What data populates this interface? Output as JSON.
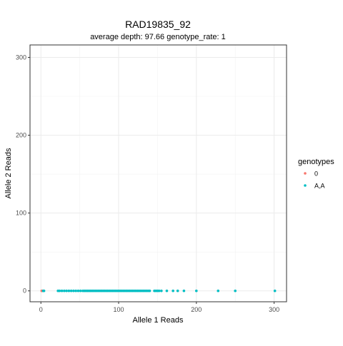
{
  "chart_data": {
    "type": "scatter",
    "title": "RAD19835_92",
    "subtitle": "average depth:  97.66  genotype_rate:  1",
    "xlabel": "Allele 1 Reads",
    "ylabel": "Allele 2 Reads",
    "xlim": [
      -14,
      316
    ],
    "ylim": [
      -14,
      316
    ],
    "x_ticks": [
      0,
      100,
      200,
      300
    ],
    "y_ticks": [
      0,
      100,
      200,
      300
    ],
    "grid": true,
    "legend_title": "genotypes",
    "legend_position": "right",
    "series": [
      {
        "name": "0",
        "color": "#F8766D",
        "points": [
          [
            1,
            0
          ],
          [
            2,
            0
          ]
        ]
      },
      {
        "name": "A,A",
        "color": "#00BFC4",
        "points": [
          [
            3,
            0
          ],
          [
            4,
            0
          ],
          [
            22,
            0
          ],
          [
            24,
            0
          ],
          [
            27,
            0
          ],
          [
            30,
            0
          ],
          [
            33,
            0
          ],
          [
            36,
            0
          ],
          [
            39,
            0
          ],
          [
            42,
            0
          ],
          [
            45,
            0
          ],
          [
            48,
            0
          ],
          [
            51,
            0
          ],
          [
            54,
            0
          ],
          [
            56,
            0
          ],
          [
            58,
            0
          ],
          [
            60,
            0
          ],
          [
            62,
            0
          ],
          [
            64,
            0
          ],
          [
            66,
            0
          ],
          [
            68,
            0
          ],
          [
            70,
            0
          ],
          [
            72,
            0
          ],
          [
            74,
            0
          ],
          [
            76,
            0
          ],
          [
            78,
            0
          ],
          [
            80,
            0
          ],
          [
            82,
            0
          ],
          [
            84,
            0
          ],
          [
            86,
            0
          ],
          [
            88,
            0
          ],
          [
            90,
            0
          ],
          [
            92,
            0
          ],
          [
            94,
            0
          ],
          [
            96,
            0
          ],
          [
            98,
            0
          ],
          [
            100,
            0
          ],
          [
            102,
            0
          ],
          [
            104,
            0
          ],
          [
            106,
            0
          ],
          [
            108,
            0
          ],
          [
            110,
            0
          ],
          [
            112,
            0
          ],
          [
            114,
            0
          ],
          [
            116,
            0
          ],
          [
            118,
            0
          ],
          [
            120,
            0
          ],
          [
            122,
            0
          ],
          [
            124,
            0
          ],
          [
            126,
            0
          ],
          [
            128,
            0
          ],
          [
            130,
            0
          ],
          [
            132,
            0
          ],
          [
            134,
            0
          ],
          [
            136,
            0
          ],
          [
            138,
            0
          ],
          [
            140,
            0
          ],
          [
            146,
            0
          ],
          [
            148,
            0
          ],
          [
            150,
            0
          ],
          [
            152,
            0
          ],
          [
            155,
            0
          ],
          [
            162,
            0
          ],
          [
            170,
            0
          ],
          [
            176,
            0
          ],
          [
            184,
            0
          ],
          [
            200,
            0
          ],
          [
            228,
            0
          ],
          [
            250,
            0
          ],
          [
            301,
            0
          ]
        ]
      }
    ]
  }
}
